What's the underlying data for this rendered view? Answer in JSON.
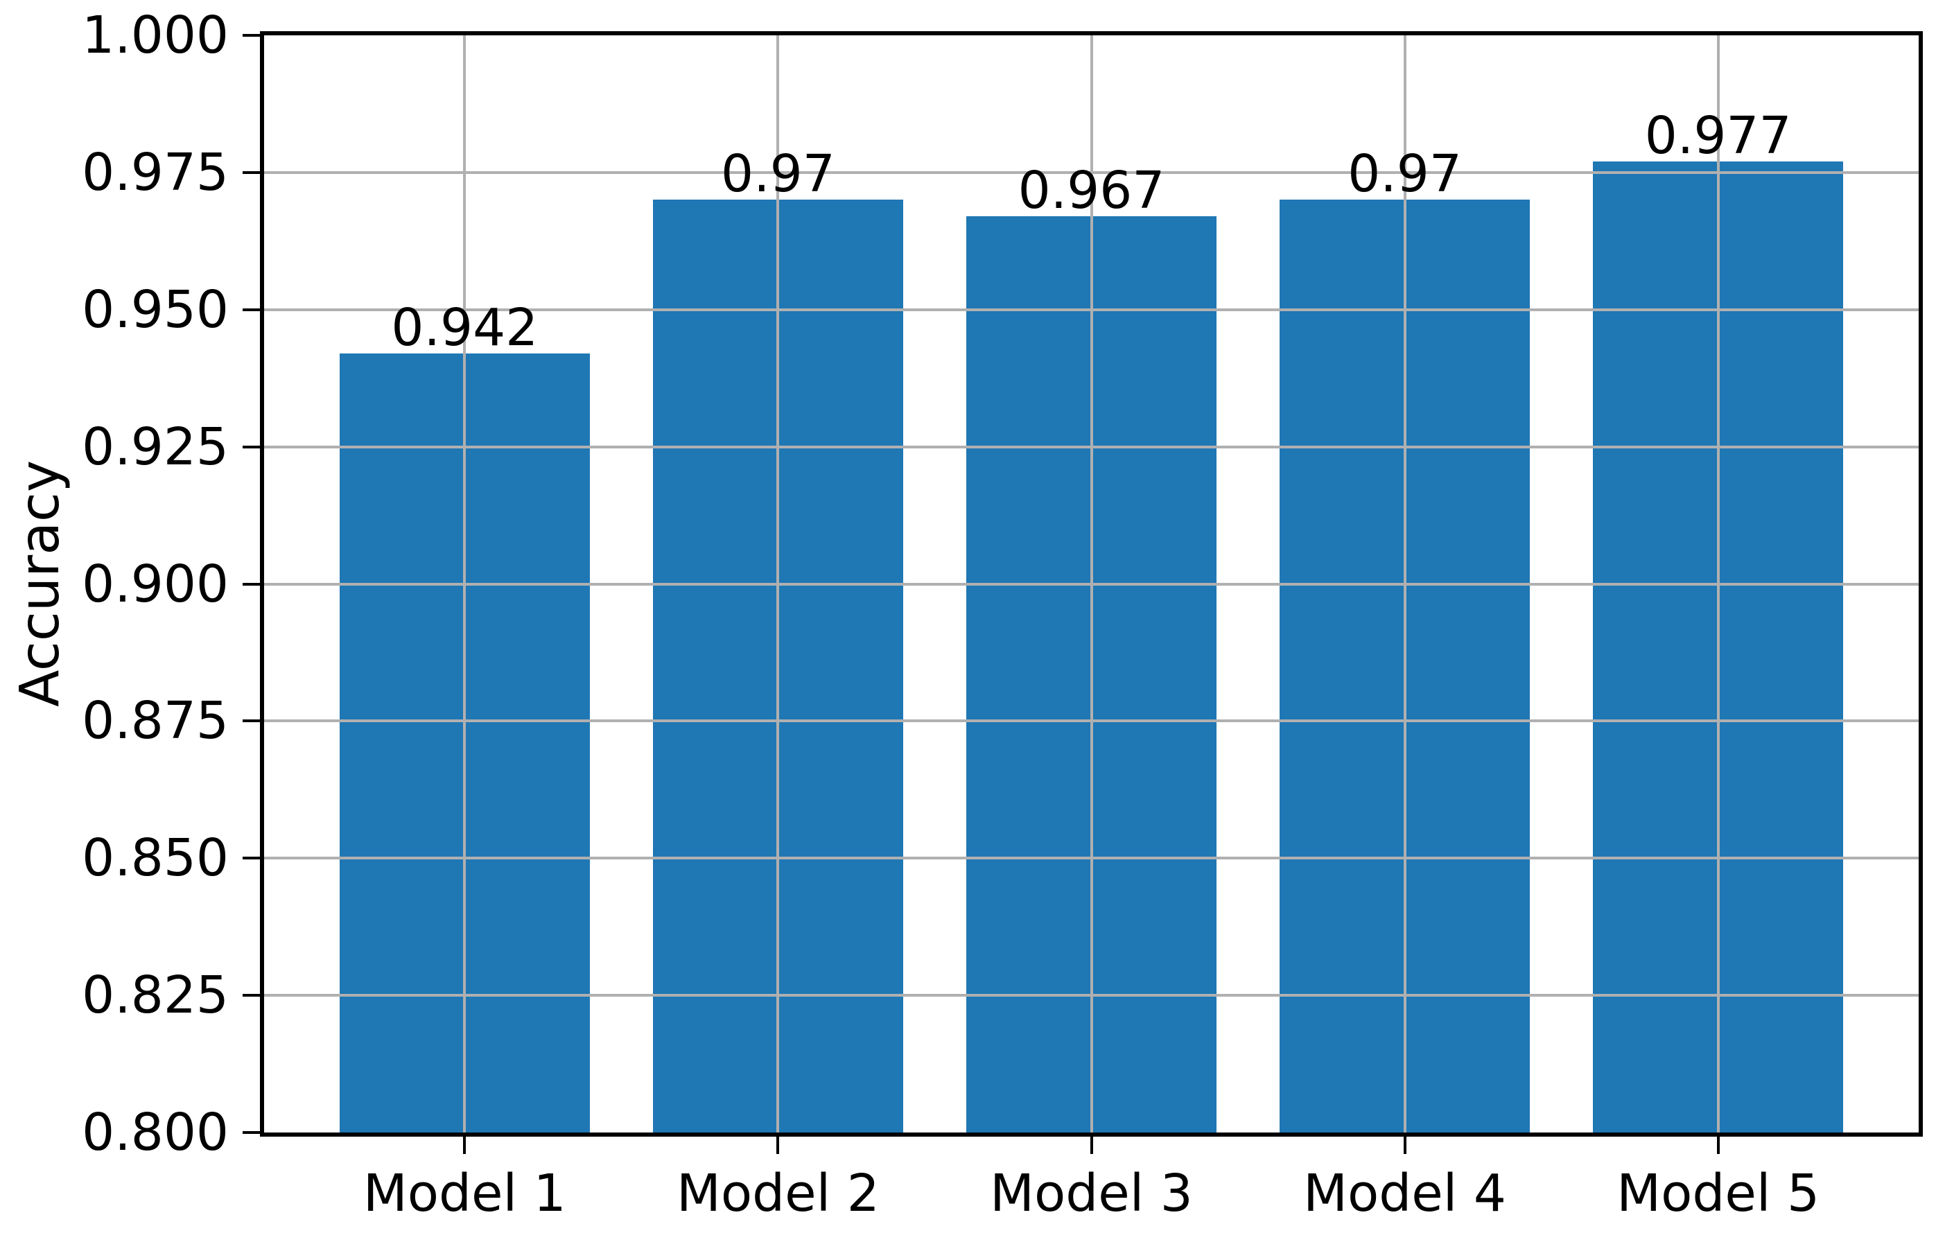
{
  "figure": {
    "background_color": "#ffffff"
  },
  "style": {
    "bar_color": "#1f77b4",
    "grid_color": "#b0b0b0",
    "spine_color": "#000000",
    "tick_color": "#000000",
    "text_color": "#000000"
  },
  "chart_data": {
    "type": "bar",
    "title": "",
    "xlabel": "",
    "ylabel": "Accuracy",
    "categories": [
      "Model 1",
      "Model 2",
      "Model 3",
      "Model 4",
      "Model 5"
    ],
    "values": [
      0.942,
      0.97,
      0.967,
      0.97,
      0.977
    ],
    "bar_value_labels": [
      "0.942",
      "0.97",
      "0.967",
      "0.97",
      "0.977"
    ],
    "series": [
      {
        "name": "Accuracy",
        "values": [
          0.942,
          0.97,
          0.967,
          0.97,
          0.977
        ]
      }
    ],
    "ylim": [
      0.8,
      1.0
    ],
    "ytick_values": [
      1.0,
      0.975,
      0.95,
      0.925,
      0.9,
      0.875,
      0.85,
      0.825,
      0.8
    ],
    "ytick_labels": [
      "1.000",
      "0.975",
      "0.950",
      "0.925",
      "0.900",
      "0.875",
      "0.850",
      "0.825",
      "0.800"
    ],
    "bar_width_fraction": 0.8,
    "grid": "both",
    "grid_over_bars": true,
    "legend": "none"
  }
}
